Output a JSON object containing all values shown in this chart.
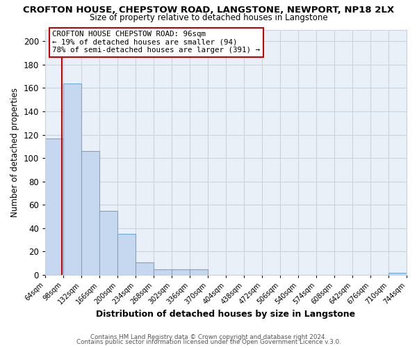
{
  "title": "CROFTON HOUSE, CHEPSTOW ROAD, LANGSTONE, NEWPORT, NP18 2LX",
  "subtitle": "Size of property relative to detached houses in Langstone",
  "xlabel": "Distribution of detached houses by size in Langstone",
  "ylabel": "Number of detached properties",
  "bin_edges": [
    64,
    98,
    132,
    166,
    200,
    234,
    268,
    302,
    336,
    370,
    404,
    438,
    472,
    506,
    540,
    574,
    608,
    642,
    676,
    710,
    744
  ],
  "bar_heights": [
    117,
    164,
    106,
    55,
    35,
    11,
    5,
    5,
    5,
    0,
    0,
    0,
    0,
    0,
    0,
    0,
    0,
    0,
    0,
    2
  ],
  "bar_color": "#c5d8ef",
  "bar_edge_color": "#6aaad4",
  "bar_linewidth": 0.8,
  "vline_x": 96,
  "vline_color": "#cc0000",
  "ylim": [
    0,
    210
  ],
  "yticks": [
    0,
    20,
    40,
    60,
    80,
    100,
    120,
    140,
    160,
    180,
    200
  ],
  "tick_labels": [
    "64sqm",
    "98sqm",
    "132sqm",
    "166sqm",
    "200sqm",
    "234sqm",
    "268sqm",
    "302sqm",
    "336sqm",
    "370sqm",
    "404sqm",
    "438sqm",
    "472sqm",
    "506sqm",
    "540sqm",
    "574sqm",
    "608sqm",
    "642sqm",
    "676sqm",
    "710sqm",
    "744sqm"
  ],
  "annotation_title": "CROFTON HOUSE CHEPSTOW ROAD: 96sqm",
  "annotation_line1": "← 19% of detached houses are smaller (94)",
  "annotation_line2": "78% of semi-detached houses are larger (391) →",
  "annotation_box_color": "#ffffff",
  "annotation_box_edge": "#cc0000",
  "footer1": "Contains HM Land Registry data © Crown copyright and database right 2024.",
  "footer2": "Contains public sector information licensed under the Open Government Licence v.3.0.",
  "bg_color": "#ffffff",
  "plot_bg_color": "#eaf0f8",
  "grid_color": "#c8d4e0"
}
